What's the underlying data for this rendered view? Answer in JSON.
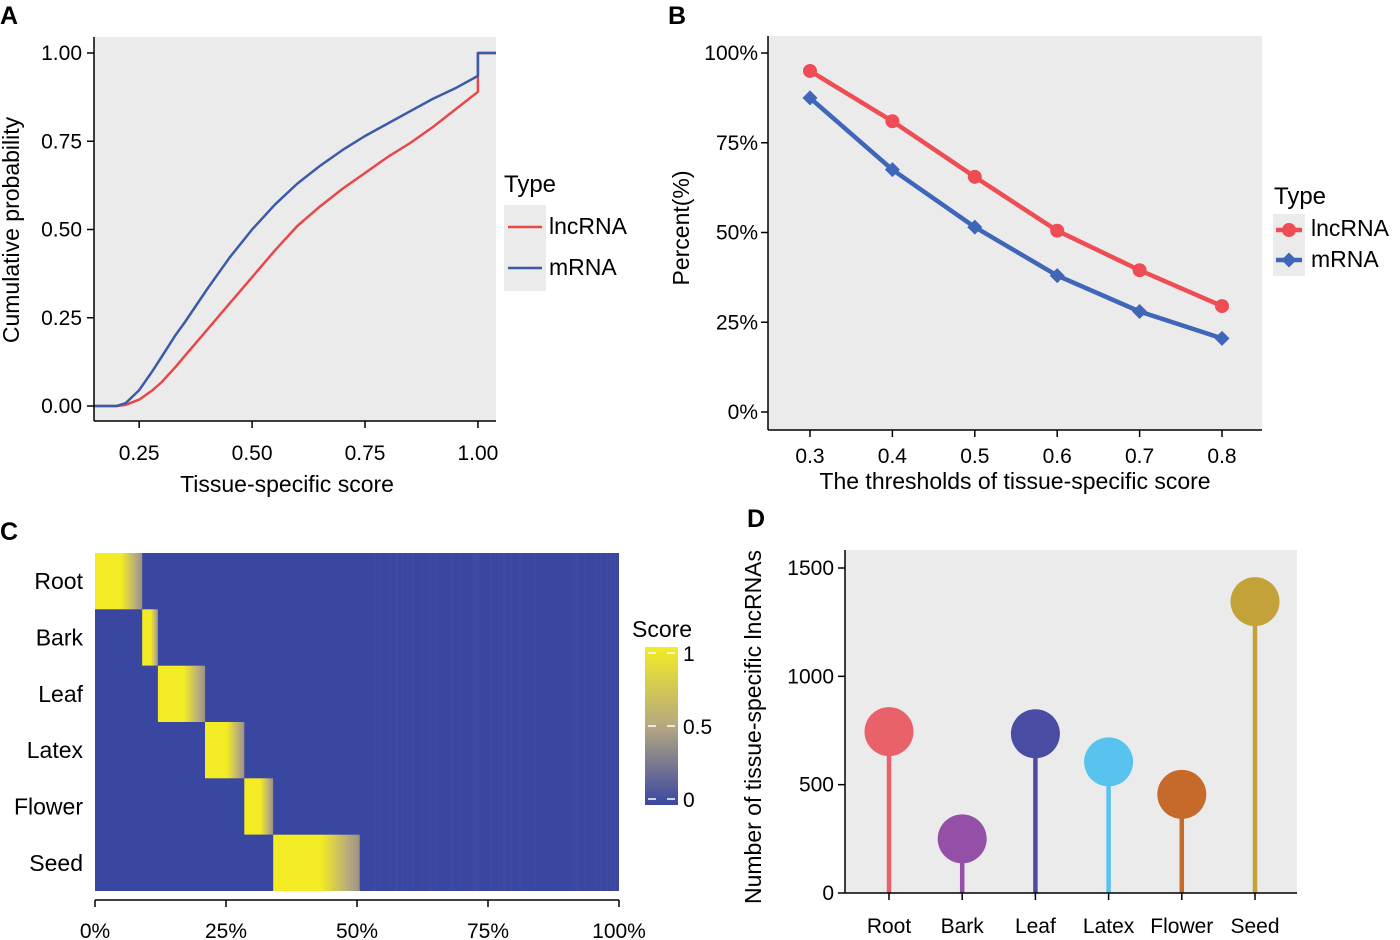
{
  "chart_data": [
    {
      "panel": "A",
      "type": "line",
      "xlabel": "Tissue-specific score",
      "ylabel": "Cumulative probability",
      "xlim": [
        0.15,
        1.04
      ],
      "ylim": [
        0,
        1.0
      ],
      "xticks": [
        0.25,
        0.5,
        0.75,
        1.0
      ],
      "xtick_labels": [
        "0.25",
        "0.50",
        "0.75",
        "1.00"
      ],
      "yticks": [
        0,
        0.25,
        0.5,
        0.75,
        1.0
      ],
      "ytick_labels": [
        "0.00",
        "0.25",
        "0.50",
        "0.75",
        "1.00"
      ],
      "legend_title": "Type",
      "series": [
        {
          "name": "lncRNA",
          "color": "#e8474a",
          "x": [
            0.15,
            0.2,
            0.22,
            0.25,
            0.28,
            0.3,
            0.33,
            0.35,
            0.4,
            0.45,
            0.5,
            0.55,
            0.6,
            0.65,
            0.7,
            0.75,
            0.8,
            0.85,
            0.9,
            0.95,
            1.0,
            1.0,
            1.04
          ],
          "y": [
            0,
            0,
            0.003,
            0.018,
            0.045,
            0.068,
            0.11,
            0.14,
            0.215,
            0.29,
            0.365,
            0.44,
            0.51,
            0.565,
            0.615,
            0.66,
            0.705,
            0.745,
            0.79,
            0.84,
            0.89,
            1.0,
            1.0
          ]
        },
        {
          "name": "mRNA",
          "color": "#3a5ba8",
          "x": [
            0.15,
            0.2,
            0.22,
            0.25,
            0.28,
            0.3,
            0.33,
            0.35,
            0.4,
            0.45,
            0.5,
            0.55,
            0.6,
            0.65,
            0.7,
            0.75,
            0.8,
            0.85,
            0.9,
            0.95,
            1.0,
            1.0,
            1.04
          ],
          "y": [
            0,
            0,
            0.008,
            0.045,
            0.1,
            0.14,
            0.2,
            0.235,
            0.33,
            0.42,
            0.5,
            0.57,
            0.63,
            0.68,
            0.725,
            0.765,
            0.8,
            0.835,
            0.87,
            0.9,
            0.935,
            1.0,
            1.0
          ]
        }
      ]
    },
    {
      "panel": "B",
      "type": "line",
      "xlabel": "The thresholds of tissue-specific score",
      "ylabel": "Percent(%)",
      "categories": [
        "0.3",
        "0.4",
        "0.5",
        "0.6",
        "0.7",
        "0.8"
      ],
      "ylim": [
        0,
        100
      ],
      "yticks": [
        0,
        25,
        50,
        75,
        100
      ],
      "ytick_labels": [
        "0%",
        "25%",
        "50%",
        "75%",
        "100%"
      ],
      "legend_title": "Type",
      "series": [
        {
          "name": "lncRNA",
          "color": "#ee4d55",
          "marker": "circle",
          "values": [
            95,
            81,
            65.5,
            50.5,
            39.5,
            29.5
          ]
        },
        {
          "name": "mRNA",
          "color": "#3f66b8",
          "marker": "diamond",
          "values": [
            87.5,
            67.5,
            51.5,
            38,
            28,
            20.5
          ]
        }
      ]
    },
    {
      "panel": "C",
      "type": "heatmap",
      "rows": [
        "Root",
        "Bark",
        "Leaf",
        "Latex",
        "Flower",
        "Seed"
      ],
      "xticks": [
        0,
        25,
        50,
        75,
        100
      ],
      "xtick_labels": [
        "0%",
        "25%",
        "50%",
        "75%",
        "100%"
      ],
      "legend_title": "Score",
      "legend_ticks": [
        0,
        0.5,
        1
      ],
      "legend_tick_labels": [
        "0",
        "0.5",
        "1"
      ],
      "colormap": [
        "#3a47a1",
        "#b5a880",
        "#f3ec24"
      ],
      "specific_ranges_pct": [
        [
          0,
          9
        ],
        [
          9,
          12
        ],
        [
          12,
          21
        ],
        [
          21,
          28.5
        ],
        [
          28.5,
          34
        ],
        [
          34,
          50.5
        ]
      ]
    },
    {
      "panel": "D",
      "type": "lollipop",
      "ylabel": "Number of tissue-specific lncRNAs",
      "categories": [
        "Root",
        "Bark",
        "Leaf",
        "Latex",
        "Flower",
        "Seed"
      ],
      "values": [
        745,
        250,
        735,
        605,
        455,
        1345
      ],
      "colors": [
        "#e9626a",
        "#944fa6",
        "#4a4ca3",
        "#58c3ee",
        "#c56a2a",
        "#c4a23a"
      ],
      "ylim": [
        0,
        1500
      ],
      "yticks": [
        0,
        500,
        1000,
        1500
      ],
      "ytick_labels": [
        "0",
        "500",
        "1000",
        "1500"
      ]
    }
  ]
}
